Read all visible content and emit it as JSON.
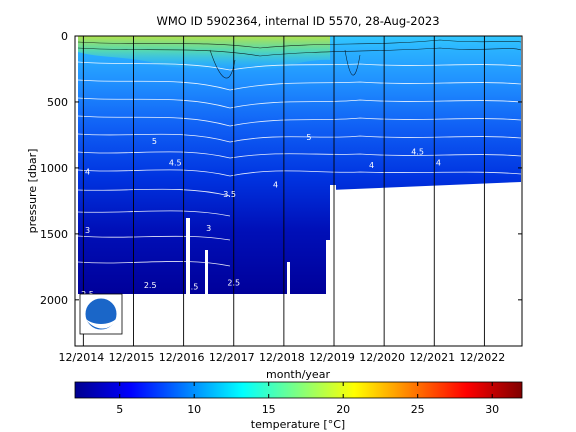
{
  "chart_data": {
    "type": "heatmap",
    "title": "WMO ID 5902364, internal ID 5570, 28-Aug-2023",
    "xlabel": "month/year",
    "ylabel": "pressure [dbar]",
    "x_ticks": [
      "12/2014",
      "12/2015",
      "12/2016",
      "12/2017",
      "12/2018",
      "12/2019",
      "12/2020",
      "12/2021",
      "12/2022"
    ],
    "y_ticks": [
      "0",
      "500",
      "1000",
      "1500",
      "2000"
    ],
    "y_range": [
      0,
      2350
    ],
    "y_reversed": true,
    "colorbar": {
      "label": "temperature [°C]",
      "ticks": [
        "5",
        "10",
        "15",
        "20",
        "25",
        "30"
      ],
      "range": [
        2,
        32
      ],
      "colormap": "jet"
    },
    "contour_labels": [
      {
        "text": "3",
        "date": "2015-01",
        "pressure": 1495
      },
      {
        "text": "4",
        "date": "2015-01",
        "pressure": 1050
      },
      {
        "text": "2.5",
        "date": "2015-01",
        "pressure": 1980
      },
      {
        "text": "3",
        "date": "2017-06",
        "pressure": 1480
      },
      {
        "text": "3.5",
        "date": "2017-11",
        "pressure": 1220
      },
      {
        "text": "2.5",
        "date": "2016-04",
        "pressure": 1910
      },
      {
        "text": "2.5",
        "date": "2017-02",
        "pressure": 1920
      },
      {
        "text": "2.5",
        "date": "2017-12",
        "pressure": 1890
      },
      {
        "text": "5",
        "date": "2016-05",
        "pressure": 820
      },
      {
        "text": "5",
        "date": "2019-06",
        "pressure": 790
      },
      {
        "text": "4",
        "date": "2020-09",
        "pressure": 1000
      },
      {
        "text": "4",
        "date": "2022-01",
        "pressure": 980
      },
      {
        "text": "4.5",
        "date": "2021-08",
        "pressure": 900
      },
      {
        "text": "4",
        "date": "2018-10",
        "pressure": 1150
      },
      {
        "text": "4.5",
        "date": "2016-10",
        "pressure": 980
      }
    ],
    "profile_dates": [
      "2014-12",
      "2015-12",
      "2016-12",
      "2017-12",
      "2018-12",
      "2019-12",
      "2020-12",
      "2021-12",
      "2022-12"
    ],
    "data_coverage": [
      {
        "from": "2014-12",
        "to": "2019-12",
        "max_pressure": 2000
      },
      {
        "from": "2019-12",
        "to": "2023-08",
        "max_pressure": 1150
      }
    ],
    "logo": "noaa-logo"
  }
}
